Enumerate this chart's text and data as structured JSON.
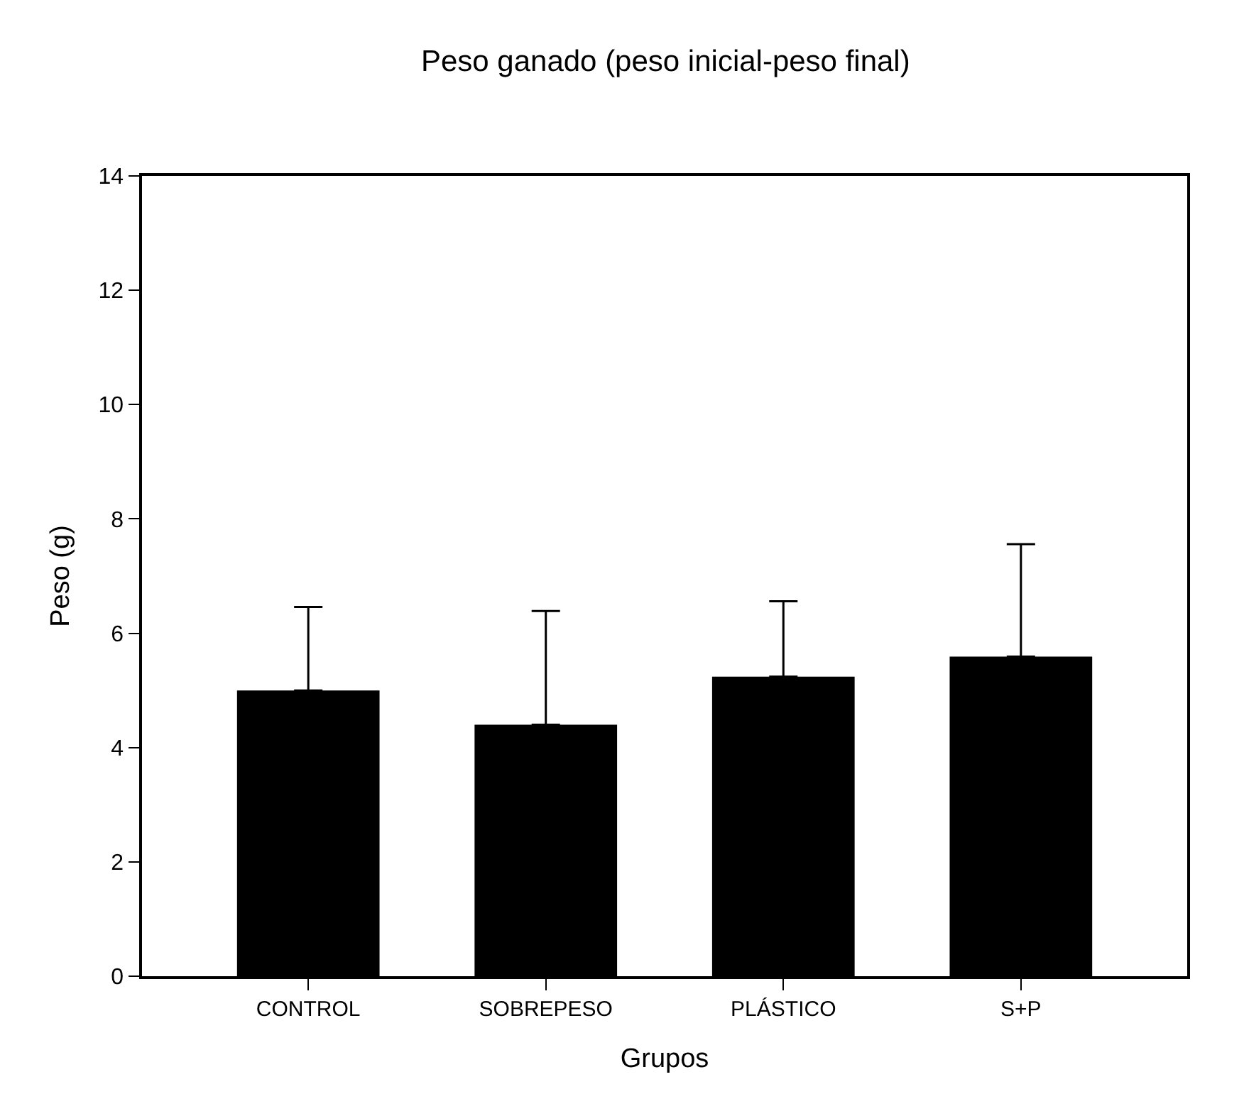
{
  "chart_data": {
    "type": "bar",
    "title": "Peso ganado (peso inicial-peso final)",
    "xlabel": "Grupos",
    "ylabel": "Peso (g)",
    "categories": [
      "CONTROL",
      "SOBREPESO",
      "PLÁSTICO",
      "S+P"
    ],
    "values": [
      5.0,
      4.4,
      5.24,
      5.59
    ],
    "errors": [
      [
        5.0,
        6.46
      ],
      [
        4.4,
        6.39
      ],
      [
        5.24,
        6.56
      ],
      [
        5.59,
        7.56
      ]
    ],
    "color": "#000000",
    "ylim": [
      0,
      14
    ],
    "yticks": [
      0,
      2,
      4,
      6,
      8,
      10,
      12,
      14
    ]
  }
}
